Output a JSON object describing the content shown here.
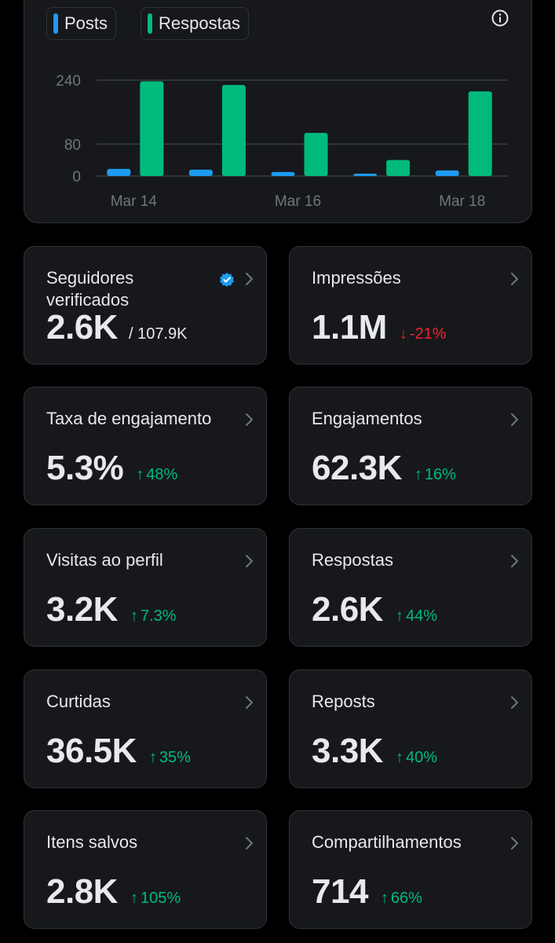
{
  "chart": {
    "legend": [
      {
        "label": "Posts",
        "color": "#1d9bf0"
      },
      {
        "label": "Respostas",
        "color": "#00ba7c"
      }
    ],
    "info_icon": "info-icon"
  },
  "chart_data": {
    "type": "bar",
    "categories": [
      "Mar 14",
      "Mar 15",
      "Mar 16",
      "Mar 17",
      "Mar 18"
    ],
    "x_tick_labels": [
      "Mar 14",
      "Mar 16",
      "Mar 18"
    ],
    "y_tick_labels": [
      "240",
      "80",
      "0"
    ],
    "y_ticks": [
      240,
      80,
      0
    ],
    "ylim": [
      0,
      240
    ],
    "series": [
      {
        "name": "Posts",
        "color": "#1d9bf0",
        "values": [
          18,
          16,
          10,
          5,
          14
        ]
      },
      {
        "name": "Respostas",
        "color": "#00ba7c",
        "values": [
          237,
          228,
          108,
          40,
          212
        ]
      }
    ],
    "grid": true,
    "legend_position": "top-left"
  },
  "stats": [
    {
      "title": "Seguidores verificados",
      "value": "2.6K",
      "sub": "/ 107.9K",
      "change": "",
      "direction": "",
      "verified": true
    },
    {
      "title": "Impressões",
      "value": "1.1M",
      "sub": "",
      "change": "-21%",
      "direction": "down",
      "verified": false
    },
    {
      "title": "Taxa de engajamento",
      "value": "5.3%",
      "sub": "",
      "change": "48%",
      "direction": "up",
      "verified": false
    },
    {
      "title": "Engajamentos",
      "value": "62.3K",
      "sub": "",
      "change": "16%",
      "direction": "up",
      "verified": false
    },
    {
      "title": "Visitas ao perfil",
      "value": "3.2K",
      "sub": "",
      "change": "7.3%",
      "direction": "up",
      "verified": false
    },
    {
      "title": "Respostas",
      "value": "2.6K",
      "sub": "",
      "change": "44%",
      "direction": "up",
      "verified": false
    },
    {
      "title": "Curtidas",
      "value": "36.5K",
      "sub": "",
      "change": "35%",
      "direction": "up",
      "verified": false
    },
    {
      "title": "Reposts",
      "value": "3.3K",
      "sub": "",
      "change": "40%",
      "direction": "up",
      "verified": false
    },
    {
      "title": "Itens salvos",
      "value": "2.8K",
      "sub": "",
      "change": "105%",
      "direction": "up",
      "verified": false
    },
    {
      "title": "Compartilhamentos",
      "value": "714",
      "sub": "",
      "change": "66%",
      "direction": "up",
      "verified": false
    }
  ]
}
